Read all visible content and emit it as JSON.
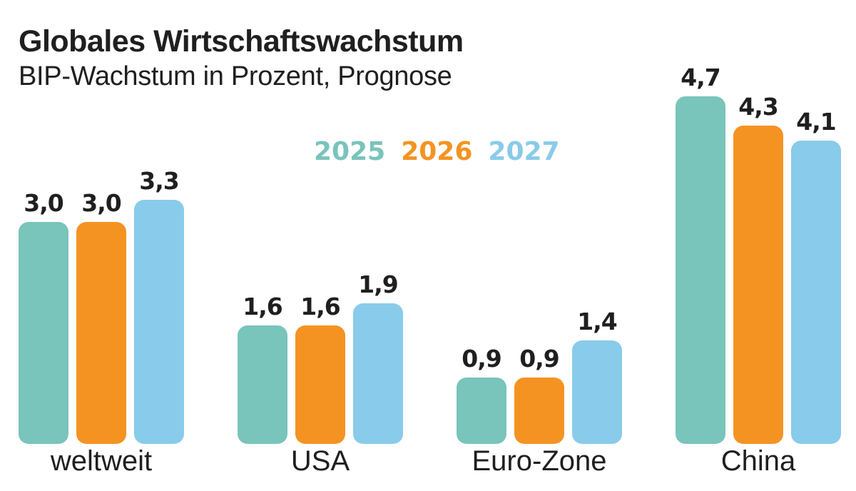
{
  "header": {
    "title": "Globales Wirtschaftswachstum",
    "subtitle": "BIP-Wachstum in Prozent, Prognose"
  },
  "legend": [
    {
      "label": "2025",
      "color": "#79c4bb"
    },
    {
      "label": "2026",
      "color": "#f59322"
    },
    {
      "label": "2027",
      "color": "#89cbea"
    }
  ],
  "chart_data": {
    "type": "bar",
    "title": "Globales Wirtschaftswachstum",
    "subtitle": "BIP-Wachstum in Prozent, Prognose",
    "xlabel": "",
    "ylabel": "",
    "categories": [
      "weltweit",
      "USA",
      "Euro-Zone",
      "China"
    ],
    "series": [
      {
        "name": "2025",
        "color": "#79c4bb",
        "values": [
          3.0,
          1.6,
          0.9,
          4.7
        ],
        "labels": [
          "3,0",
          "1,6",
          "0,9",
          "4,7"
        ]
      },
      {
        "name": "2026",
        "color": "#f59322",
        "values": [
          3.0,
          1.6,
          0.9,
          4.3
        ],
        "labels": [
          "3,0",
          "1,6",
          "0,9",
          "4,3"
        ]
      },
      {
        "name": "2027",
        "color": "#89cbea",
        "values": [
          3.3,
          1.9,
          1.4,
          4.1
        ],
        "labels": [
          "3,3",
          "1,9",
          "1,4",
          "4,1"
        ]
      }
    ],
    "ylim": [
      0,
      5
    ],
    "grid": false,
    "legend_position": "top-center"
  }
}
